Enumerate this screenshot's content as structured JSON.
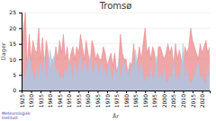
{
  "chart_data": {
    "type": "area",
    "title": "Tromsø",
    "x_label": "År",
    "y_label": "Dager",
    "annotation": "Meteorologisk\nInstitutt",
    "x": [
      1925,
      1926,
      1927,
      1928,
      1929,
      1930,
      1931,
      1932,
      1933,
      1934,
      1935,
      1936,
      1937,
      1938,
      1939,
      1940,
      1941,
      1942,
      1943,
      1944,
      1945,
      1946,
      1947,
      1948,
      1949,
      1950,
      1951,
      1952,
      1953,
      1954,
      1955,
      1956,
      1957,
      1958,
      1959,
      1960,
      1961,
      1962,
      1963,
      1964,
      1965,
      1966,
      1967,
      1968,
      1969,
      1970,
      1971,
      1972,
      1973,
      1974,
      1975,
      1976,
      1977,
      1978,
      1979,
      1980,
      1981,
      1982,
      1983,
      1984,
      1985,
      1986,
      1987,
      1988,
      1989,
      1990,
      1991,
      1992,
      1993,
      1994,
      1995,
      1996,
      1997,
      1998,
      1999,
      2000,
      2001,
      2002,
      2003,
      2004,
      2005,
      2006,
      2007,
      2008,
      2009,
      2010,
      2011,
      2012,
      2013,
      2014,
      2015,
      2016,
      2017,
      2018,
      2019,
      2020,
      2021,
      2022,
      2023,
      2024
    ],
    "series": [
      {
        "color": "#e8888a",
        "values": [
          14,
          20,
          25,
          8,
          18,
          10,
          16,
          13,
          12,
          20,
          10,
          17,
          8,
          16,
          12,
          6,
          10,
          8,
          14,
          10,
          16,
          12,
          18,
          10,
          14,
          8,
          12,
          14,
          10,
          14,
          12,
          18,
          14,
          10,
          16,
          12,
          8,
          16,
          14,
          10,
          12,
          10,
          10,
          14,
          12,
          8,
          10,
          12,
          8,
          12,
          6,
          8,
          18,
          12,
          10,
          10,
          5,
          9,
          8,
          15,
          8,
          10,
          14,
          10,
          15,
          20,
          12,
          14,
          10,
          14,
          12,
          6,
          14,
          14,
          12,
          10,
          12,
          15,
          12,
          14,
          8,
          15,
          10,
          13,
          10,
          8,
          14,
          12,
          14,
          20,
          16,
          14,
          12,
          10,
          15,
          12,
          14,
          16,
          12,
          14
        ]
      },
      {
        "color": "#a8c8e8",
        "values": [
          7,
          5,
          3,
          9,
          11,
          7,
          5,
          3,
          7,
          3,
          9,
          5,
          11,
          3,
          7,
          13,
          9,
          11,
          5,
          7,
          3,
          5,
          3,
          7,
          5,
          9,
          7,
          3,
          9,
          5,
          7,
          11,
          5,
          9,
          7,
          5,
          11,
          7,
          5,
          9,
          7,
          5,
          9,
          5,
          7,
          3,
          9,
          5,
          3,
          7,
          5,
          9,
          3,
          7,
          9,
          5,
          7,
          3,
          9,
          5,
          13,
          7,
          5,
          9,
          5,
          2,
          5,
          3,
          7,
          3,
          5,
          11,
          3,
          5,
          3,
          7,
          3,
          2,
          5,
          3,
          9,
          2,
          5,
          3,
          7,
          15,
          2,
          7,
          3,
          2,
          3,
          5,
          7,
          9,
          3,
          5,
          3,
          2,
          7,
          3
        ]
      }
    ],
    "xlim": [
      1925,
      2024
    ],
    "xticks": [
      1925,
      1930,
      1935,
      1940,
      1945,
      1950,
      1955,
      1960,
      1965,
      1970,
      1975,
      1980,
      1985,
      1990,
      1995,
      2000,
      2005,
      2010,
      2015,
      2020
    ],
    "ylim": [
      0,
      25
    ],
    "yticks": [
      0,
      5,
      10,
      15,
      20,
      25
    ],
    "grid": true
  }
}
